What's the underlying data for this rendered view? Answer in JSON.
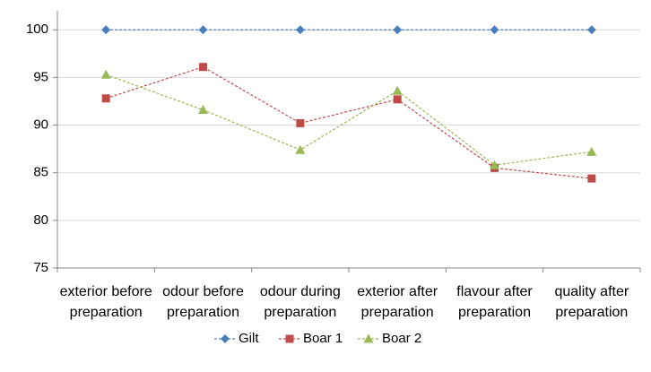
{
  "chart_data": {
    "type": "line",
    "categories": [
      "exterior before preparation",
      "odour before preparation",
      "odour during preparation",
      "exterior after preparation",
      "flavour after preparation",
      "quality after preparation"
    ],
    "series": [
      {
        "name": "Gilt",
        "color": "#4a7ebb",
        "marker": "diamond",
        "values": [
          100,
          100,
          100,
          100,
          100,
          100
        ]
      },
      {
        "name": "Boar 1",
        "color": "#be4b48",
        "marker": "square",
        "values": [
          92.8,
          96.1,
          90.2,
          92.7,
          85.5,
          84.4
        ]
      },
      {
        "name": "Boar 2",
        "color": "#98b954",
        "marker": "triangle",
        "values": [
          95.3,
          91.6,
          87.4,
          93.6,
          85.8,
          87.2
        ]
      }
    ],
    "ylim": [
      75,
      102
    ],
    "yticks": [
      75,
      80,
      85,
      90,
      95,
      100
    ],
    "grid": true,
    "legend": "bottom"
  }
}
